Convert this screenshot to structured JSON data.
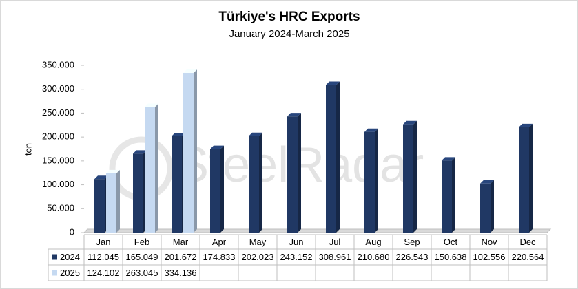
{
  "chart_data": {
    "type": "bar",
    "title": "Türkiye's HRC Exports",
    "subtitle": "January 2024-March 2025",
    "y_label": "ton",
    "watermark": "SteelRadar",
    "categories": [
      "Jan",
      "Feb",
      "Mar",
      "Apr",
      "May",
      "Jun",
      "Jul",
      "Aug",
      "Sep",
      "Oct",
      "Nov",
      "Dec"
    ],
    "series": [
      {
        "name": "2024",
        "color": "#203864",
        "values": [
          112045,
          165049,
          201672,
          174833,
          202023,
          243152,
          308961,
          210680,
          226543,
          150638,
          102556,
          220564
        ],
        "value_labels": [
          "112.045",
          "165.049",
          "201.672",
          "174.833",
          "202.023",
          "243.152",
          "308.961",
          "210.680",
          "226.543",
          "150.638",
          "102.556",
          "220.564"
        ]
      },
      {
        "name": "2025",
        "color": "#c5d9f1",
        "values": [
          124102,
          263045,
          334136,
          null,
          null,
          null,
          null,
          null,
          null,
          null,
          null,
          null
        ],
        "value_labels": [
          "124.102",
          "263.045",
          "334.136",
          null,
          null,
          null,
          null,
          null,
          null,
          null,
          null,
          null
        ]
      }
    ],
    "ylim": [
      0,
      350000
    ],
    "yticks": [
      0,
      {
        "value": 50000,
        "label": "50.000"
      },
      {
        "value": 100000,
        "label": "100.000"
      },
      {
        "value": 150000,
        "label": "150.000"
      },
      {
        "value": 200000,
        "label": "200.000"
      },
      {
        "value": 250000,
        "label": "250.000"
      },
      {
        "value": 300000,
        "label": "300.000"
      },
      {
        "value": 350000,
        "label": "350.000"
      }
    ],
    "grid": false
  }
}
